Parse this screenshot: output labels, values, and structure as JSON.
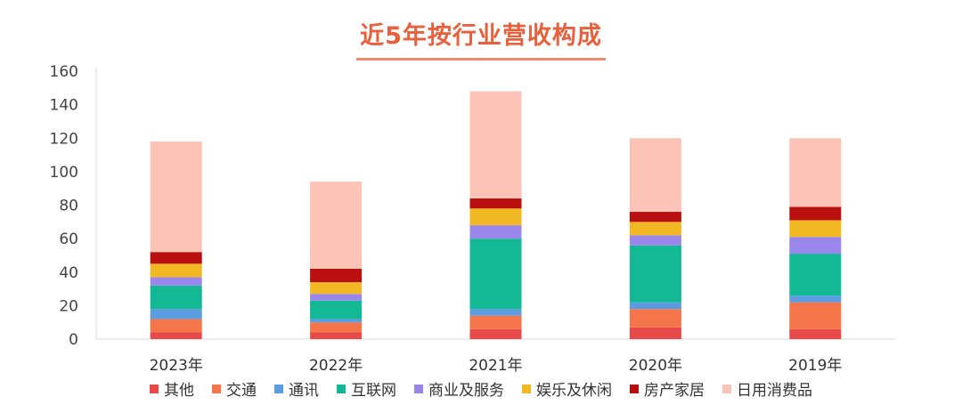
{
  "chart_data": {
    "type": "bar",
    "stacked": true,
    "title": "近5年按行业营收构成",
    "categories": [
      "2023年",
      "2022年",
      "2021年",
      "2020年",
      "2019年"
    ],
    "ylim": [
      0,
      160
    ],
    "yticks": [
      0,
      20,
      40,
      60,
      80,
      100,
      120,
      140,
      160
    ],
    "grid": false,
    "legend_position": "bottom",
    "series": [
      {
        "name": "其他",
        "color": "#e84a4a",
        "values": [
          4,
          4,
          6,
          7,
          6
        ]
      },
      {
        "name": "交通",
        "color": "#f5754a",
        "values": [
          8,
          6,
          8,
          11,
          16
        ]
      },
      {
        "name": "通讯",
        "color": "#5b9de0",
        "values": [
          6,
          2,
          4,
          4,
          4
        ]
      },
      {
        "name": "互联网",
        "color": "#13b995",
        "values": [
          14,
          11,
          42,
          34,
          25
        ]
      },
      {
        "name": "商业及服务",
        "color": "#9b87ec",
        "values": [
          5,
          4,
          8,
          6,
          10
        ]
      },
      {
        "name": "娱乐及休闲",
        "color": "#f2b824",
        "values": [
          8,
          7,
          10,
          8,
          10
        ]
      },
      {
        "name": "房产家居",
        "color": "#b90f0f",
        "values": [
          7,
          8,
          6,
          6,
          8
        ]
      },
      {
        "name": "日用消费品",
        "color": "#fcc3b6",
        "values": [
          66,
          52,
          64,
          44,
          41
        ]
      }
    ]
  }
}
